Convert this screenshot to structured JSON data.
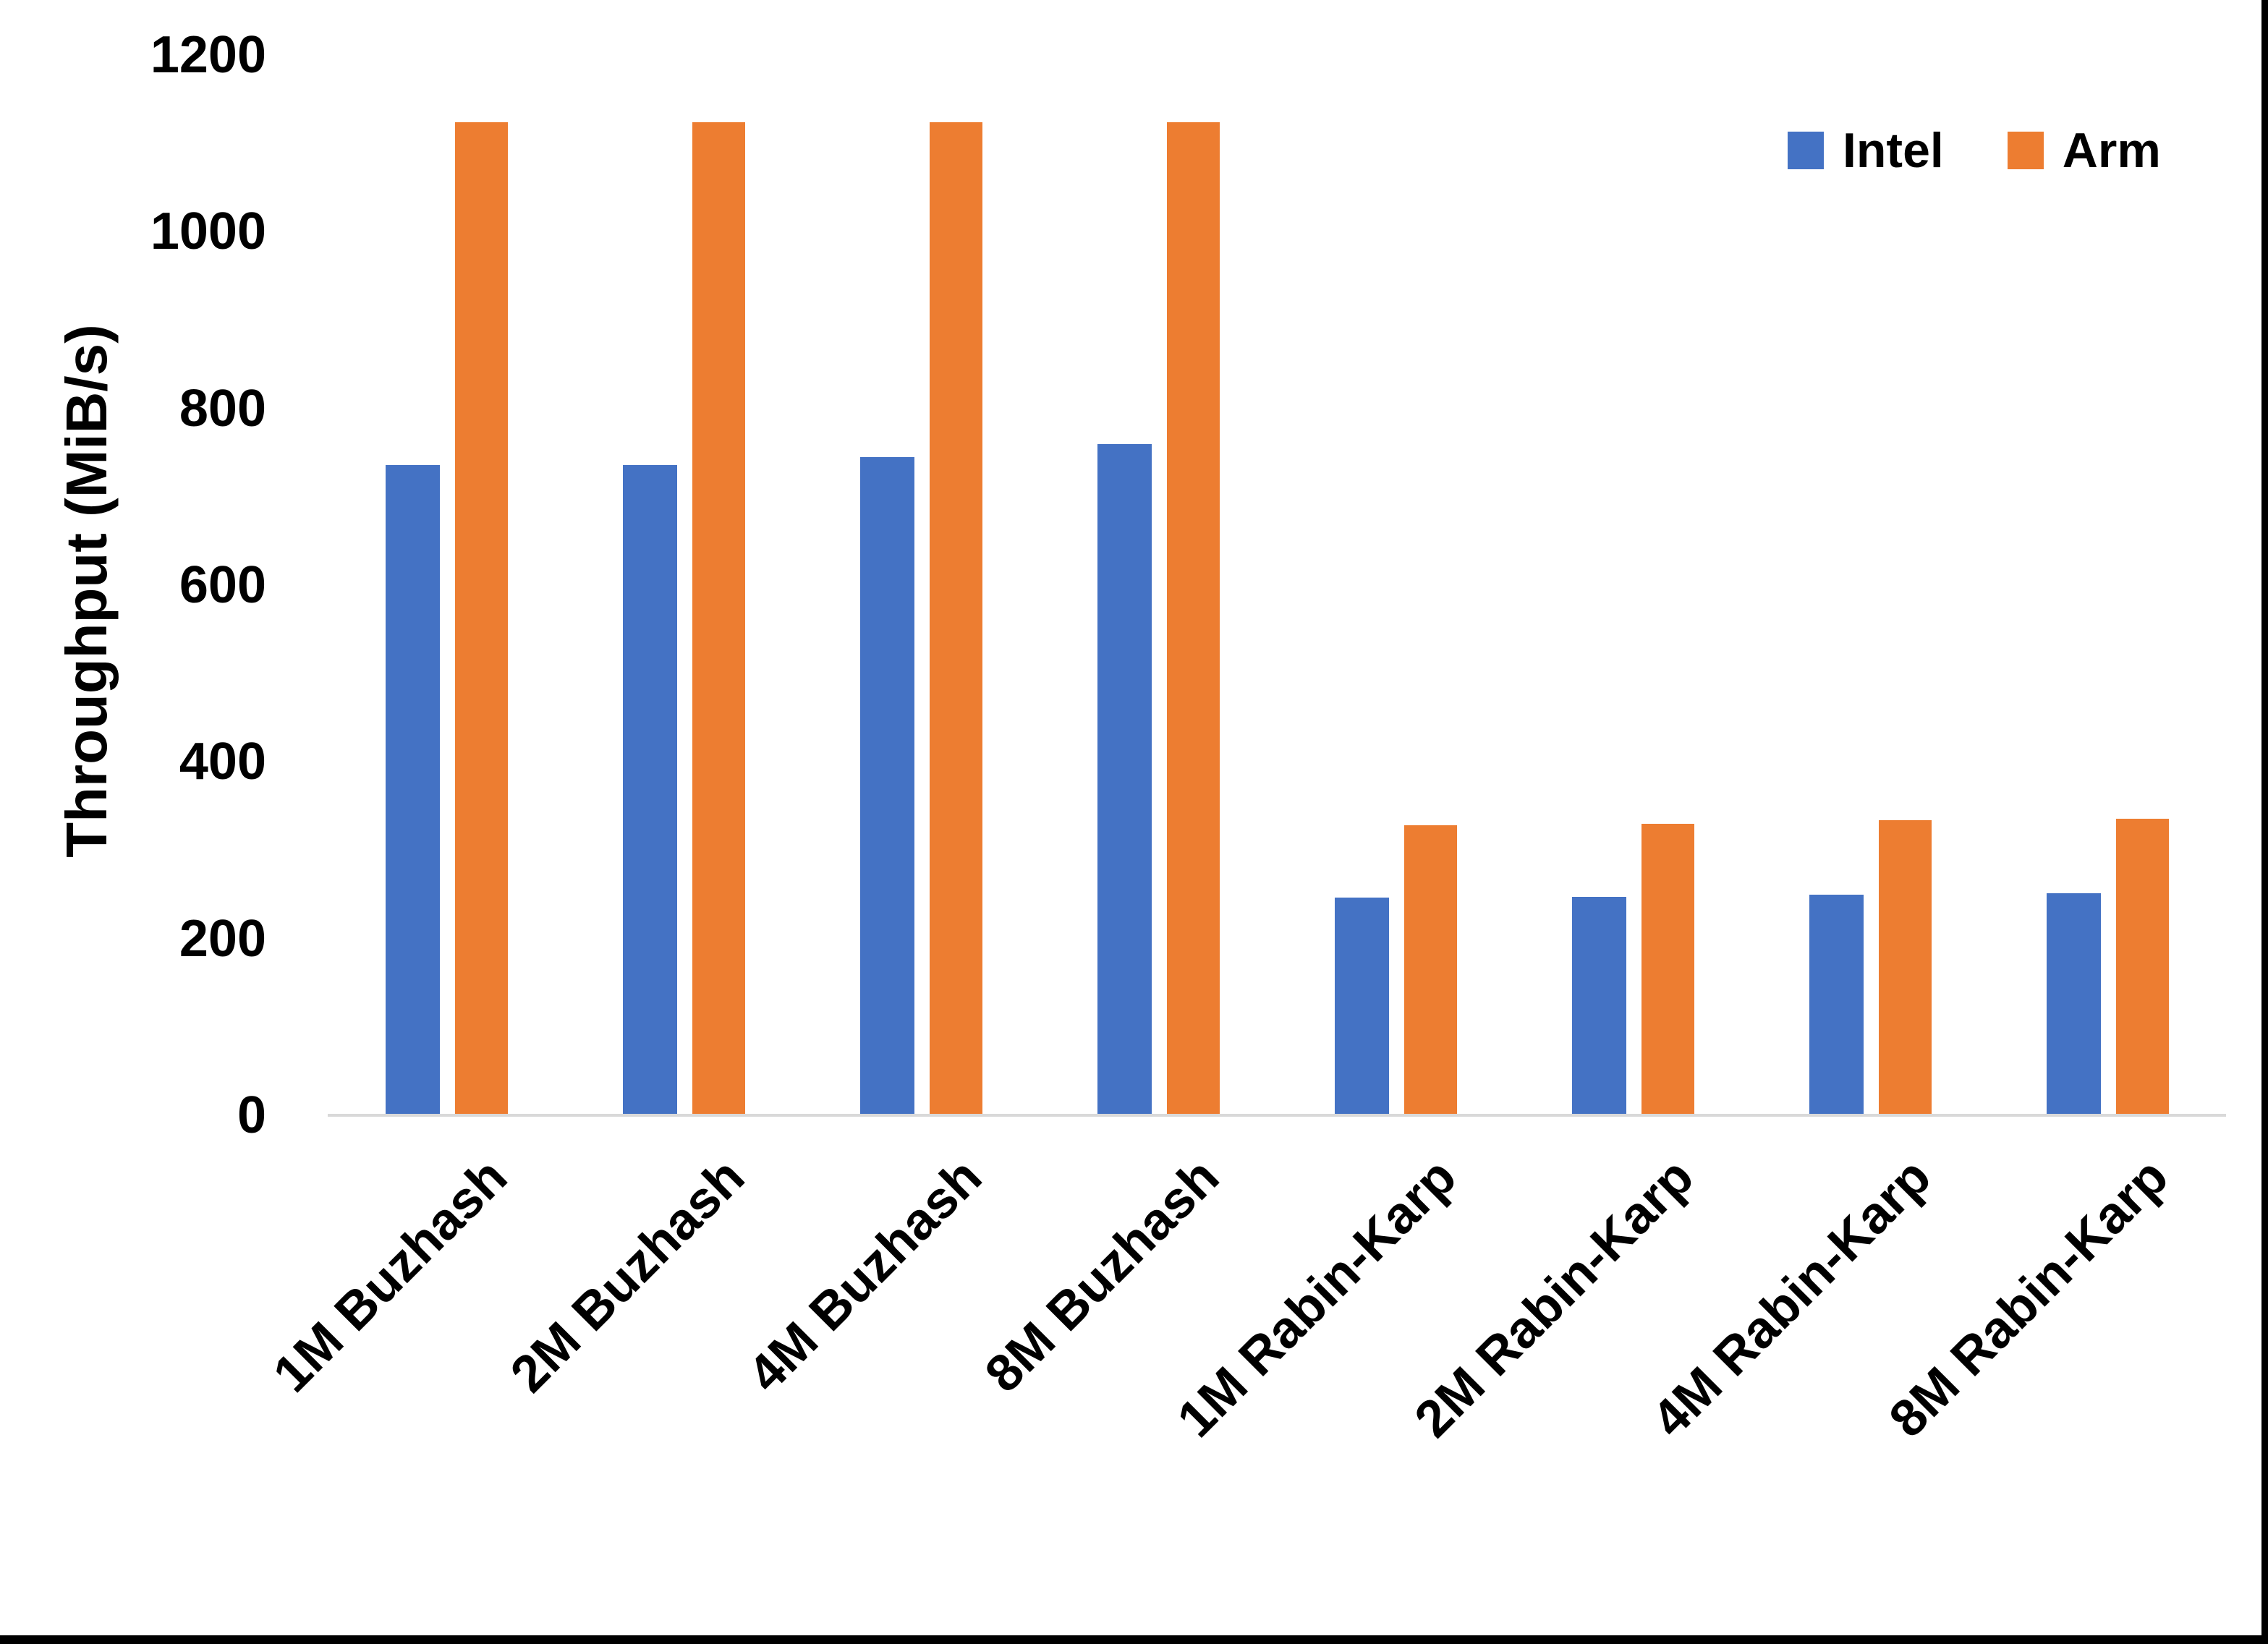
{
  "chart_data": {
    "type": "bar",
    "title": "",
    "xlabel": "",
    "ylabel": "Throughput (MiB/s)",
    "ylim": [
      0,
      1200
    ],
    "yticks": [
      1200,
      1000,
      800,
      600,
      400,
      200,
      0
    ],
    "grid": false,
    "legend_position": "top-right",
    "categories": [
      "1M Buzhash",
      "2M Buzhash",
      "4M Buzhash",
      "8M Buzhash",
      "1M Rabin-Karp",
      "2M Rabin-Karp",
      "4M Rabin-Karp",
      "8M Rabin-Karp"
    ],
    "series": [
      {
        "name": "Intel",
        "color": "#4472C4",
        "values": [
          736,
          736,
          745,
          760,
          246,
          247,
          250,
          251
        ]
      },
      {
        "name": "Arm",
        "color": "#ED7D31",
        "values": [
          1124,
          1124,
          1124,
          1124,
          328,
          330,
          334,
          336
        ]
      }
    ],
    "axis_line_color": "#D9D9D9",
    "text_color": "#000000",
    "frame_border_color": "#000000"
  }
}
